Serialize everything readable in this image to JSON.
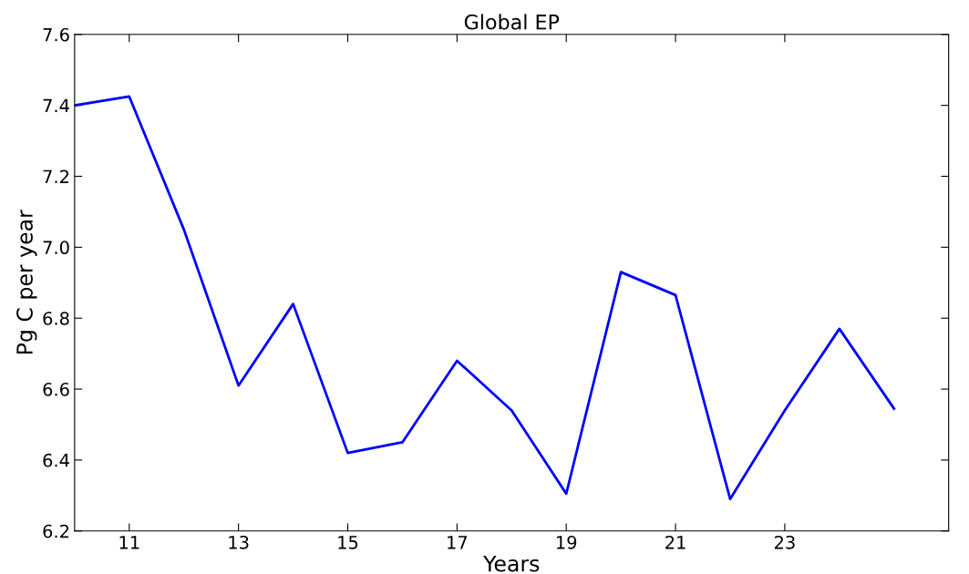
{
  "chart_data": {
    "type": "line",
    "title": "Global EP",
    "xlabel": "Years",
    "ylabel": "Pg C per year",
    "x": [
      10,
      11,
      12,
      13,
      14,
      15,
      16,
      17,
      18,
      19,
      20,
      21,
      22,
      23,
      24,
      25
    ],
    "series": [
      {
        "color": "#0000ff",
        "values": [
          7.4,
          7.425,
          7.05,
          6.61,
          6.84,
          6.42,
          6.45,
          6.68,
          6.54,
          6.305,
          6.93,
          6.865,
          6.29,
          6.54,
          6.77,
          6.545
        ]
      }
    ],
    "xlim": [
      10,
      26
    ],
    "xticks": [
      11,
      13,
      15,
      17,
      19,
      21,
      23
    ],
    "ylim": [
      6.2,
      7.6
    ],
    "yticks": [
      {
        "value": 6.2,
        "label": "6.2"
      },
      {
        "value": 6.4,
        "label": "6.4"
      },
      {
        "value": 6.6,
        "label": "6.6"
      },
      {
        "value": 6.8,
        "label": "6.8"
      },
      {
        "value": 7.0,
        "label": "7.0"
      },
      {
        "value": 7.2,
        "label": "7.2"
      },
      {
        "value": 7.4,
        "label": "7.4"
      },
      {
        "value": 7.6,
        "label": "7.6"
      }
    ],
    "grid": false,
    "legend": false,
    "marker": "none",
    "line_style": "solid"
  }
}
